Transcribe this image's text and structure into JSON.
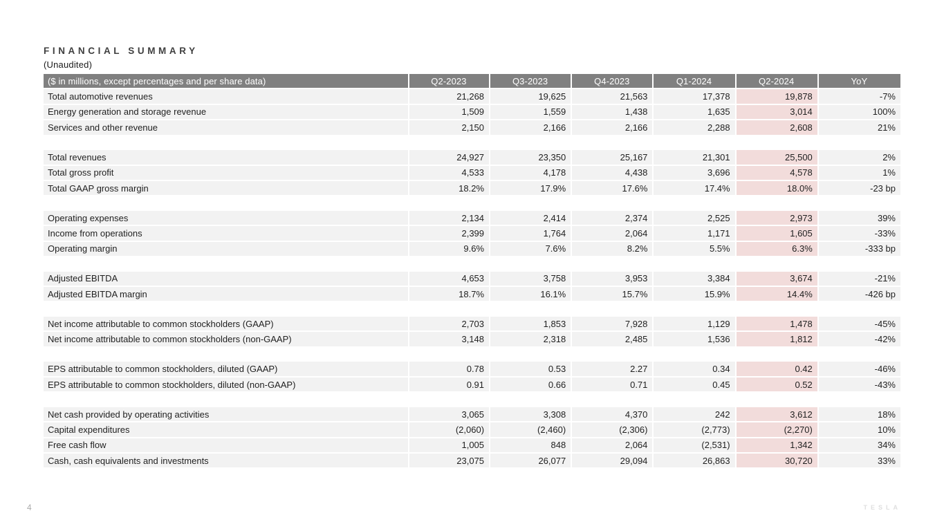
{
  "page": {
    "title": "FINANCIAL SUMMARY",
    "subtitle": "(Unaudited)",
    "page_number": "4",
    "brand": "TESLA"
  },
  "colors": {
    "header_bg": "#808080",
    "header_text": "#ffffff",
    "row_bg": "#f2f2f2",
    "highlight_bg": "#f2dcdb",
    "spacer_bg": "#ffffff"
  },
  "table": {
    "columns": [
      "($ in millions, except percentages and per share data)",
      "Q2-2023",
      "Q3-2023",
      "Q4-2023",
      "Q1-2024",
      "Q2-2024",
      "YoY"
    ],
    "highlight_column": "Q2-2024",
    "highlight_value_index": 4,
    "groups": [
      {
        "rows": [
          {
            "label": "Total automotive revenues",
            "values": [
              "21,268",
              "19,625",
              "21,563",
              "17,378",
              "19,878",
              "-7%"
            ]
          },
          {
            "label": "Energy generation and storage revenue",
            "values": [
              "1,509",
              "1,559",
              "1,438",
              "1,635",
              "3,014",
              "100%"
            ]
          },
          {
            "label": "Services and other revenue",
            "values": [
              "2,150",
              "2,166",
              "2,166",
              "2,288",
              "2,608",
              "21%"
            ]
          }
        ]
      },
      {
        "rows": [
          {
            "label": "Total revenues",
            "values": [
              "24,927",
              "23,350",
              "25,167",
              "21,301",
              "25,500",
              "2%"
            ]
          },
          {
            "label": "Total gross profit",
            "values": [
              "4,533",
              "4,178",
              "4,438",
              "3,696",
              "4,578",
              "1%"
            ]
          },
          {
            "label": "Total GAAP gross margin",
            "values": [
              "18.2%",
              "17.9%",
              "17.6%",
              "17.4%",
              "18.0%",
              "-23 bp"
            ]
          }
        ]
      },
      {
        "rows": [
          {
            "label": "Operating expenses",
            "values": [
              "2,134",
              "2,414",
              "2,374",
              "2,525",
              "2,973",
              "39%"
            ]
          },
          {
            "label": "Income from operations",
            "values": [
              "2,399",
              "1,764",
              "2,064",
              "1,171",
              "1,605",
              "-33%"
            ]
          },
          {
            "label": "Operating margin",
            "values": [
              "9.6%",
              "7.6%",
              "8.2%",
              "5.5%",
              "6.3%",
              "-333 bp"
            ]
          }
        ]
      },
      {
        "rows": [
          {
            "label": "Adjusted EBITDA",
            "values": [
              "4,653",
              "3,758",
              "3,953",
              "3,384",
              "3,674",
              "-21%"
            ]
          },
          {
            "label": "Adjusted EBITDA margin",
            "values": [
              "18.7%",
              "16.1%",
              "15.7%",
              "15.9%",
              "14.4%",
              "-426 bp"
            ]
          }
        ]
      },
      {
        "rows": [
          {
            "label": "Net income attributable to common stockholders (GAAP)",
            "values": [
              "2,703",
              "1,853",
              "7,928",
              "1,129",
              "1,478",
              "-45%"
            ]
          },
          {
            "label": "Net income attributable to common stockholders (non-GAAP)",
            "values": [
              "3,148",
              "2,318",
              "2,485",
              "1,536",
              "1,812",
              "-42%"
            ]
          }
        ]
      },
      {
        "rows": [
          {
            "label": "EPS attributable to common stockholders, diluted (GAAP)",
            "values": [
              "0.78",
              "0.53",
              "2.27",
              "0.34",
              "0.42",
              "-46%"
            ]
          },
          {
            "label": "EPS attributable to common stockholders, diluted (non-GAAP)",
            "values": [
              "0.91",
              "0.66",
              "0.71",
              "0.45",
              "0.52",
              "-43%"
            ]
          }
        ]
      },
      {
        "rows": [
          {
            "label": "Net cash provided by operating activities",
            "values": [
              "3,065",
              "3,308",
              "4,370",
              "242",
              "3,612",
              "18%"
            ]
          },
          {
            "label": "Capital expenditures",
            "values": [
              "(2,060)",
              "(2,460)",
              "(2,306)",
              "(2,773)",
              "(2,270)",
              "10%"
            ]
          },
          {
            "label": "Free cash flow",
            "values": [
              "1,005",
              "848",
              "2,064",
              "(2,531)",
              "1,342",
              "34%"
            ]
          },
          {
            "label": "Cash, cash equivalents and investments",
            "values": [
              "23,075",
              "26,077",
              "29,094",
              "26,863",
              "30,720",
              "33%"
            ]
          }
        ]
      }
    ]
  }
}
